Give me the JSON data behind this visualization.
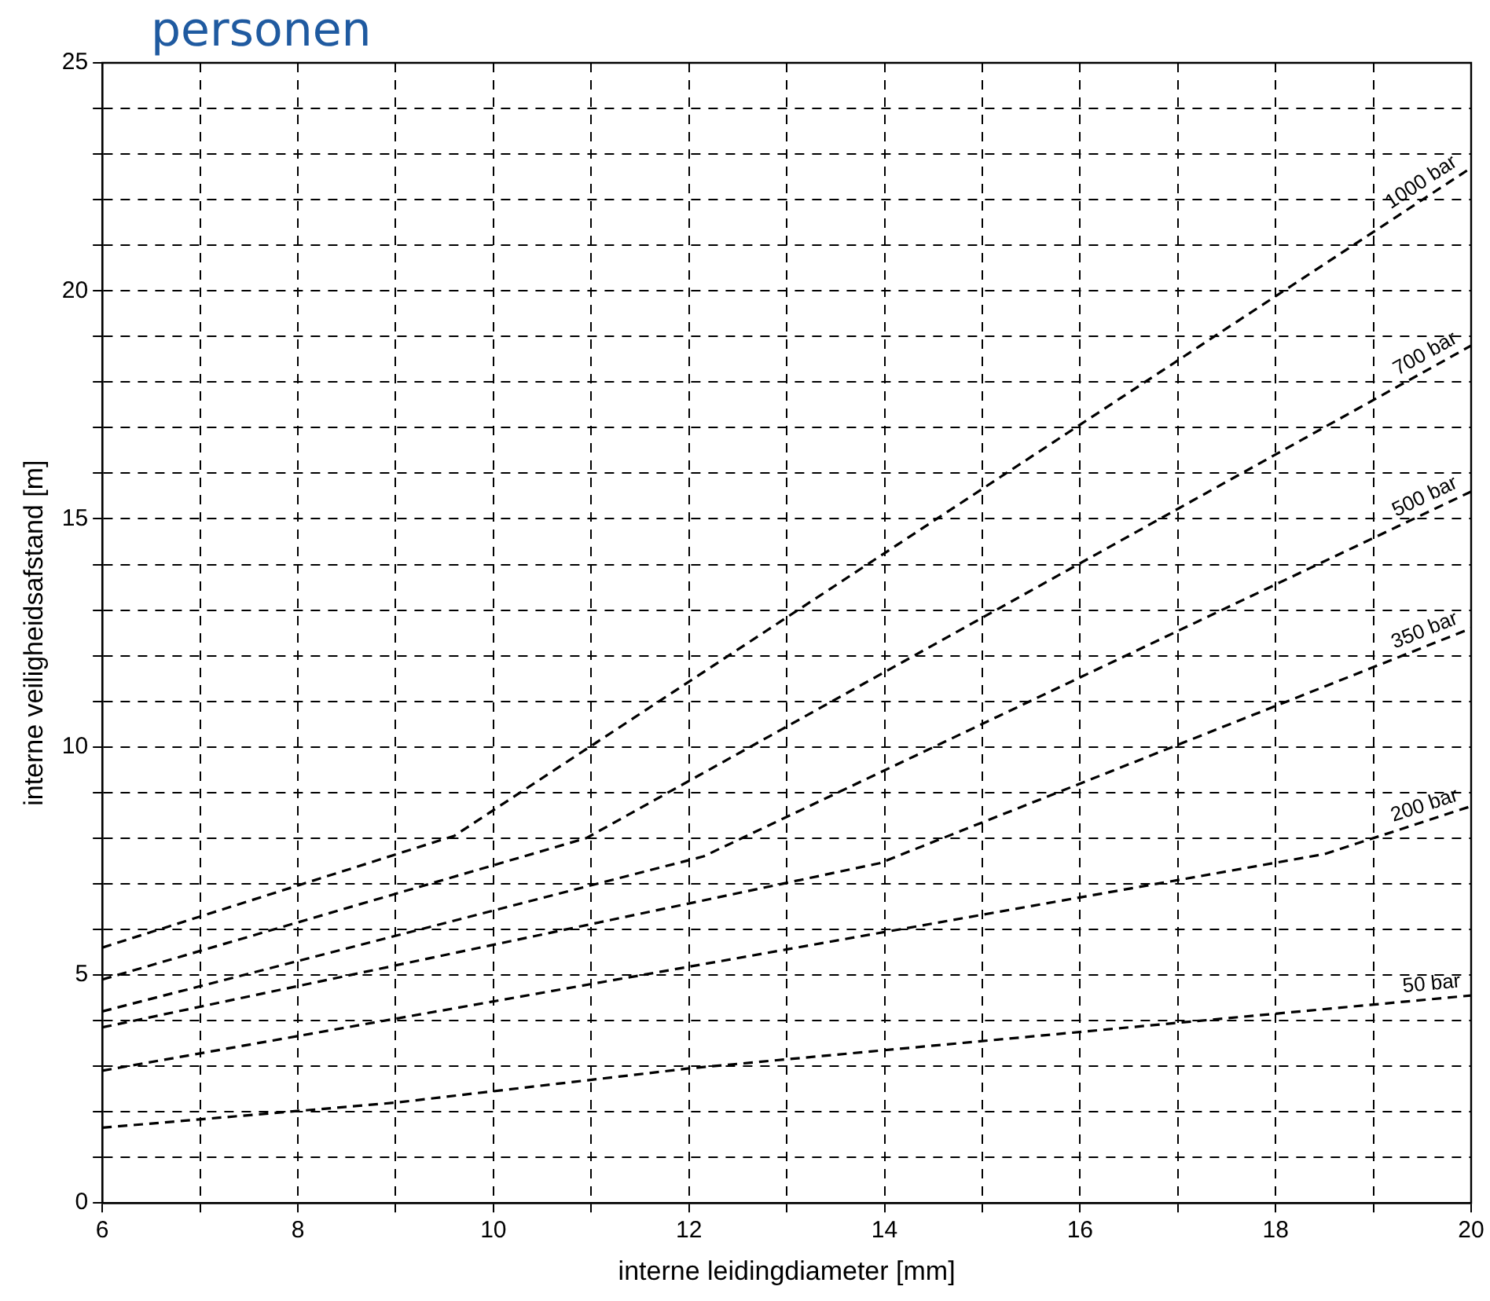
{
  "chart_data": {
    "type": "line",
    "title": "personen",
    "xlabel": "interne leidingdiameter [mm]",
    "ylabel": "interne veiligheidsafstand [m]",
    "xlim": [
      6,
      20
    ],
    "xticks": [
      6,
      {
        "value": 7,
        "label": null
      },
      8,
      {
        "value": 9,
        "label": null
      },
      10,
      {
        "value": 11,
        "label": null
      },
      12,
      {
        "value": 13,
        "label": null
      },
      14,
      {
        "value": 15,
        "label": null
      },
      16,
      {
        "value": 17,
        "label": null
      },
      18,
      {
        "value": 19,
        "label": null
      },
      20
    ],
    "ylim": [
      0,
      25
    ],
    "yticks": [
      0,
      {
        "value": 1,
        "label": null
      },
      {
        "value": 2,
        "label": null
      },
      {
        "value": 3,
        "label": null
      },
      {
        "value": 4,
        "label": null
      },
      5,
      {
        "value": 6,
        "label": null
      },
      {
        "value": 7,
        "label": null
      },
      {
        "value": 8,
        "label": null
      },
      {
        "value": 9,
        "label": null
      },
      10,
      {
        "value": 11,
        "label": null
      },
      {
        "value": 12,
        "label": null
      },
      {
        "value": 13,
        "label": null
      },
      {
        "value": 14,
        "label": null
      },
      15,
      {
        "value": 16,
        "label": null
      },
      {
        "value": 17,
        "label": null
      },
      {
        "value": 18,
        "label": null
      },
      {
        "value": 19,
        "label": null
      },
      20,
      {
        "value": 21,
        "label": null
      },
      {
        "value": 22,
        "label": null
      },
      {
        "value": 23,
        "label": null
      },
      {
        "value": 24,
        "label": null
      },
      25
    ],
    "grid": true,
    "legend": false,
    "marker": "none",
    "line_style": "dashed",
    "series": [
      {
        "name": "1000 bar",
        "color": "#000000",
        "x": [
          6,
          9.6,
          20
        ],
        "values": [
          5.6,
          8.05,
          22.7
        ]
      },
      {
        "name": "700 bar",
        "color": "#000000",
        "x": [
          6,
          10.95,
          20
        ],
        "values": [
          4.9,
          8.0,
          18.8
        ]
      },
      {
        "name": "500 bar",
        "color": "#000000",
        "x": [
          6,
          12.15,
          20
        ],
        "values": [
          4.2,
          7.6,
          15.6
        ]
      },
      {
        "name": "350 bar",
        "color": "#000000",
        "x": [
          6,
          13.95,
          20
        ],
        "values": [
          3.85,
          7.45,
          12.6
        ]
      },
      {
        "name": "200 bar",
        "color": "#000000",
        "x": [
          6,
          18.5,
          20
        ],
        "values": [
          2.9,
          7.65,
          8.7
        ]
      },
      {
        "name": "50 bar",
        "color": "#000000",
        "x": [
          6,
          9,
          12,
          14,
          20
        ],
        "values": [
          1.65,
          2.2,
          2.95,
          3.35,
          4.55
        ]
      }
    ]
  }
}
